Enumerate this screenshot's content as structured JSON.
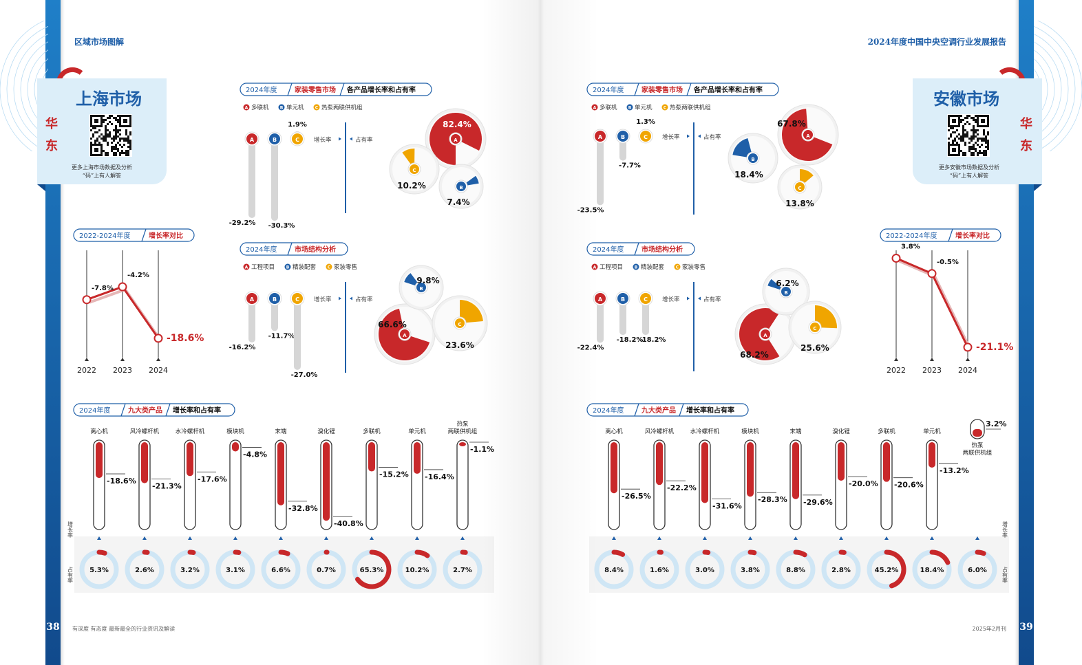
{
  "colors": {
    "red": "#c8282a",
    "blue": "#1f5fa8",
    "yellow": "#f0a500",
    "lightblue": "#cfe6f5",
    "gray": "#d8d8d8",
    "band": "#1a6fb5"
  },
  "left": {
    "header": "区域市场图解",
    "market_name": "上海市场",
    "region_chars": [
      "华",
      "东"
    ],
    "qr_caption": [
      "更多上海市场数据及分析",
      "“码”上有人解答"
    ],
    "page_number": "38",
    "footer_text": "有深度  有态度  最新最全的行业资讯及解读",
    "growth_compare": {
      "year_tag": "2022-2024年度",
      "title": "增长率对比",
      "years": [
        "2022",
        "2023",
        "2024"
      ],
      "values": [
        -7.8,
        -4.2,
        -18.6
      ],
      "labels": [
        "-7.8%",
        "-4.2%",
        "-18.6%"
      ]
    },
    "retail": {
      "year_tag": "2024年度",
      "title_red": "家装零售市场",
      "title_black": "各产品增长率和占有率",
      "legend": [
        "多联机",
        "单元机",
        "热泵两联供机组"
      ],
      "bars": [
        {
          "letter": "A",
          "growth": -29.2,
          "label": "-29.2%"
        },
        {
          "letter": "B",
          "growth": -30.3,
          "label": "-30.3%"
        },
        {
          "letter": "C",
          "growth": 1.9,
          "label": "1.9%"
        }
      ],
      "growth_label": "增长率",
      "share_label": "占有率",
      "pies": [
        {
          "letter": "A",
          "share": 82.4,
          "label": "82.4%"
        },
        {
          "letter": "B",
          "share": 7.4,
          "label": "7.4%"
        },
        {
          "letter": "C",
          "share": 10.2,
          "label": "10.2%"
        }
      ]
    },
    "structure": {
      "year_tag": "2024年度",
      "title_red": "市场结构分析",
      "legend": [
        "工程项目",
        "精装配套",
        "家装零售"
      ],
      "bars": [
        {
          "letter": "A",
          "growth": -16.2,
          "label": "-16.2%"
        },
        {
          "letter": "B",
          "growth": -11.7,
          "label": "-11.7%"
        },
        {
          "letter": "C",
          "growth": -27.0,
          "label": "-27.0%"
        }
      ],
      "growth_label": "增长率",
      "share_label": "占有率",
      "pies": [
        {
          "letter": "A",
          "share": 66.6,
          "label": "66.6%"
        },
        {
          "letter": "B",
          "share": 9.8,
          "label": "9.8%"
        },
        {
          "letter": "C",
          "share": 23.6,
          "label": "23.6%"
        }
      ]
    },
    "nine": {
      "year_tag": "2024年度",
      "title_red": "九大类产品",
      "title_black": "增长率和占有率",
      "row_growth": "增长率",
      "row_share": "占有率",
      "products": [
        {
          "name": "离心机",
          "growth": -18.6,
          "growth_label": "-18.6%",
          "share": 5.3,
          "share_label": "5.3%"
        },
        {
          "name": "风冷螺杆机",
          "growth": -21.3,
          "growth_label": "-21.3%",
          "share": 2.6,
          "share_label": "2.6%"
        },
        {
          "name": "水冷螺杆机",
          "growth": -17.6,
          "growth_label": "-17.6%",
          "share": 3.2,
          "share_label": "3.2%"
        },
        {
          "name": "模块机",
          "growth": -4.8,
          "growth_label": "-4.8%",
          "share": 3.1,
          "share_label": "3.1%"
        },
        {
          "name": "末端",
          "growth": -32.8,
          "growth_label": "-32.8%",
          "share": 6.6,
          "share_label": "6.6%"
        },
        {
          "name": "溴化锂",
          "growth": -40.8,
          "growth_label": "-40.8%",
          "share": 0.7,
          "share_label": "0.7%"
        },
        {
          "name": "多联机",
          "growth": -15.2,
          "growth_label": "-15.2%",
          "share": 65.3,
          "share_label": "65.3%"
        },
        {
          "name": "单元机",
          "growth": -16.4,
          "growth_label": "-16.4%",
          "share": 10.2,
          "share_label": "10.2%"
        },
        {
          "name": "热泵两联供机组",
          "growth": -1.1,
          "growth_label": "-1.1%",
          "share": 2.7,
          "share_label": "2.7%"
        }
      ]
    }
  },
  "right": {
    "header": "2024年度中国中央空调行业发展报告",
    "market_name": "安徽市场",
    "region_chars": [
      "华",
      "东"
    ],
    "qr_caption": [
      "更多安徽市场数据及分析",
      "“码”上有人解答"
    ],
    "page_number": "39",
    "footer_text": "2025年2月刊",
    "growth_compare": {
      "year_tag": "2022-2024年度",
      "title": "增长率对比",
      "years": [
        "2022",
        "2023",
        "2024"
      ],
      "values": [
        3.8,
        -0.5,
        -21.1
      ],
      "labels": [
        "3.8%",
        "-0.5%",
        "-21.1%"
      ]
    },
    "retail": {
      "year_tag": "2024年度",
      "title_red": "家装零售市场",
      "title_black": "各产品增长率和占有率",
      "legend": [
        "多联机",
        "单元机",
        "热泵两联供机组"
      ],
      "bars": [
        {
          "letter": "A",
          "growth": -23.5,
          "label": "-23.5%"
        },
        {
          "letter": "B",
          "growth": -7.7,
          "label": "-7.7%"
        },
        {
          "letter": "C",
          "growth": 1.3,
          "label": "1.3%"
        }
      ],
      "growth_label": "增长率",
      "share_label": "占有率",
      "pies": [
        {
          "letter": "A",
          "share": 67.8,
          "label": "67.8%"
        },
        {
          "letter": "B",
          "share": 18.4,
          "label": "18.4%"
        },
        {
          "letter": "C",
          "share": 13.8,
          "label": "13.8%"
        }
      ]
    },
    "structure": {
      "year_tag": "2024年度",
      "title_red": "市场结构分析",
      "legend": [
        "工程项目",
        "精装配套",
        "家装零售"
      ],
      "bars": [
        {
          "letter": "A",
          "growth": -22.4,
          "label": "-22.4%"
        },
        {
          "letter": "B",
          "growth": -18.2,
          "label": "-18.2%"
        },
        {
          "letter": "C",
          "growth": -18.2,
          "label": "-18.2%"
        }
      ],
      "growth_label": "增长率",
      "share_label": "占有率",
      "pies": [
        {
          "letter": "A",
          "share": 68.2,
          "label": "68.2%"
        },
        {
          "letter": "B",
          "share": 6.2,
          "label": "6.2%"
        },
        {
          "letter": "C",
          "share": 25.6,
          "label": "25.6%"
        }
      ]
    },
    "nine": {
      "year_tag": "2024年度",
      "title_red": "九大类产品",
      "title_black": "增长率和占有率",
      "row_growth": "增长率",
      "row_share": "占有率",
      "products": [
        {
          "name": "离心机",
          "growth": -26.5,
          "growth_label": "-26.5%",
          "share": 8.4,
          "share_label": "8.4%"
        },
        {
          "name": "风冷螺杆机",
          "growth": -22.2,
          "growth_label": "-22.2%",
          "share": 1.6,
          "share_label": "1.6%"
        },
        {
          "name": "水冷螺杆机",
          "growth": -31.6,
          "growth_label": "-31.6%",
          "share": 3.0,
          "share_label": "3.0%"
        },
        {
          "name": "模块机",
          "growth": -28.3,
          "growth_label": "-28.3%",
          "share": 3.8,
          "share_label": "3.8%"
        },
        {
          "name": "末端",
          "growth": -29.6,
          "growth_label": "-29.6%",
          "share": 8.8,
          "share_label": "8.8%"
        },
        {
          "name": "溴化锂",
          "growth": -20.0,
          "growth_label": "-20.0%",
          "share": 2.8,
          "share_label": "2.8%"
        },
        {
          "name": "多联机",
          "growth": -20.6,
          "growth_label": "-20.6%",
          "share": 45.2,
          "share_label": "45.2%"
        },
        {
          "name": "单元机",
          "growth": -13.2,
          "growth_label": "-13.2%",
          "share": 18.4,
          "share_label": "18.4%"
        },
        {
          "name": "热泵两联供机组",
          "growth": 3.2,
          "growth_label": "3.2%",
          "share": 6.0,
          "share_label": "6.0%"
        }
      ]
    }
  }
}
